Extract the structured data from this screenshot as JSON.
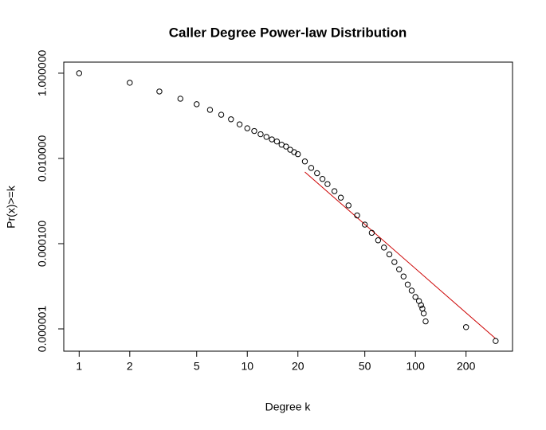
{
  "chart_data": {
    "type": "scatter",
    "title": "Caller Degree Power-law Distribution",
    "x_label": "Degree k",
    "y_label": "Pr(x)>=k",
    "x": [
      1,
      2,
      3,
      4,
      5,
      6,
      7,
      8,
      9,
      10,
      11,
      12,
      13,
      14,
      15,
      16,
      17,
      18,
      19,
      20,
      22,
      24,
      26,
      28,
      30,
      33,
      36,
      40,
      45,
      50,
      55,
      60,
      65,
      70,
      75,
      80,
      85,
      90,
      95,
      100,
      105,
      108,
      110,
      112,
      115,
      200,
      300
    ],
    "values": [
      1.0,
      0.597,
      0.372,
      0.252,
      0.187,
      0.138,
      0.106,
      0.083,
      0.063,
      0.051,
      0.044,
      0.037,
      0.032,
      0.028,
      0.025,
      0.021,
      0.019,
      0.016,
      0.014,
      0.0126,
      0.0085,
      0.006,
      0.0045,
      0.0033,
      0.0025,
      0.0017,
      0.0012,
      0.00079,
      0.00046,
      0.00028,
      0.00018,
      0.00012,
      8.1e-05,
      5.6e-05,
      3.7e-05,
      2.5e-05,
      1.7e-05,
      1.1e-05,
      7.9e-06,
      5.6e-06,
      4.5e-06,
      3.6e-06,
      3e-06,
      2.3e-06,
      1.5e-06,
      1.1e-06,
      5.2e-07
    ],
    "color": "#000000",
    "fit": {
      "x": [
        22,
        300
      ],
      "values": [
        0.0048,
        5.9e-07
      ],
      "color": "#cc0000"
    },
    "log_x": true,
    "log_y": true,
    "xlim": [
      0.81,
      378
    ],
    "ylim": [
      3e-07,
      1.82
    ],
    "xticks": [
      1,
      2,
      5,
      10,
      20,
      50,
      100,
      200
    ],
    "yticks": [
      {
        "value": 1,
        "label": "1.000000"
      },
      {
        "value": 0.01,
        "label": "0.010000"
      },
      {
        "value": 0.0001,
        "label": "0.000100"
      },
      {
        "value": 1e-06,
        "label": "0.000001"
      }
    ]
  }
}
